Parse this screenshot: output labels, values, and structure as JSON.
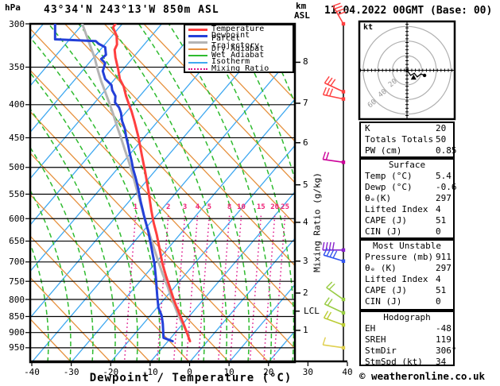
{
  "header": {
    "title": "43°34'N 243°13'W 850m ASL",
    "pressure_unit": "hPa",
    "alt_unit_line1": "km",
    "alt_unit_line2": "ASL",
    "datetime": "11.04.2022 00GMT (Base: 00)"
  },
  "axes": {
    "xlabel": "Dewpoint / Temperature (°C)",
    "mixing_axis_label": "Mixing Ratio (g/kg)",
    "lcl": {
      "label": "LCL",
      "p": 834
    }
  },
  "legend": [
    {
      "label": "Temperature",
      "color": "#ff3f3f",
      "style": "thick"
    },
    {
      "label": "Dewpoint",
      "color": "#2440d8",
      "style": "thick"
    },
    {
      "label": "Parcel Trajectory",
      "color": "#b4b4b4",
      "style": "thick"
    },
    {
      "label": "Dry Adiabat",
      "color": "#e6913e",
      "style": "thin"
    },
    {
      "label": "Wet Adiabat",
      "color": "#2fbb2f",
      "style": "thin"
    },
    {
      "label": "Isotherm",
      "color": "#3fa8f0",
      "style": "thin"
    },
    {
      "label": "Mixing Ratio",
      "color": "#dd1188",
      "style": "dotted"
    }
  ],
  "chart_data": {
    "type": "line",
    "subtype": "skew-t-log-p-sounding",
    "title": "43°34'N 243°13'W 850m ASL",
    "xlabel": "Dewpoint / Temperature (°C)",
    "x_ticks": [
      -40,
      -30,
      -20,
      -10,
      0,
      10,
      20,
      30,
      40
    ],
    "x_range": [
      -40,
      40
    ],
    "pressure_ticks_hpa": [
      300,
      350,
      400,
      450,
      500,
      550,
      600,
      650,
      700,
      750,
      800,
      850,
      900,
      950
    ],
    "pressure_range_hpa": [
      300,
      1000
    ],
    "pressure_axis": "log",
    "note": "points are [pressure hPa, position on skewed bottom temperature axis in °C]",
    "series": [
      {
        "name": "Temperature",
        "color": "#ff3f3f",
        "width": 3,
        "points": [
          [
            300,
            -18.8
          ],
          [
            304,
            -19.4
          ],
          [
            313,
            -18.5
          ],
          [
            323,
            -18.4
          ],
          [
            329,
            -19.0
          ],
          [
            338,
            -18.8
          ],
          [
            353,
            -18.1
          ],
          [
            365,
            -17.7
          ],
          [
            375,
            -16.7
          ],
          [
            388,
            -16.1
          ],
          [
            399,
            -15.4
          ],
          [
            410,
            -14.7
          ],
          [
            424,
            -14.0
          ],
          [
            448,
            -13.0
          ],
          [
            479,
            -12.1
          ],
          [
            510,
            -11.2
          ],
          [
            545,
            -10.4
          ],
          [
            583,
            -9.7
          ],
          [
            609,
            -9.1
          ],
          [
            636,
            -8.3
          ],
          [
            664,
            -7.7
          ],
          [
            704,
            -6.9
          ],
          [
            735,
            -6.0
          ],
          [
            767,
            -5.0
          ],
          [
            801,
            -4.0
          ],
          [
            824,
            -3.2
          ],
          [
            853,
            -2.2
          ],
          [
            877,
            -1.4
          ],
          [
            903,
            -0.6
          ],
          [
            928,
            0.1
          ]
        ]
      },
      {
        "name": "Dewpoint",
        "color": "#2440d8",
        "width": 3,
        "points": [
          [
            300,
            -34.1
          ],
          [
            317,
            -34.1
          ],
          [
            319,
            -23.8
          ],
          [
            322,
            -23.1
          ],
          [
            326,
            -21.4
          ],
          [
            335,
            -21.2
          ],
          [
            340,
            -22.4
          ],
          [
            345,
            -21.4
          ],
          [
            355,
            -22.0
          ],
          [
            365,
            -21.4
          ],
          [
            373,
            -19.8
          ],
          [
            380,
            -19.6
          ],
          [
            388,
            -18.8
          ],
          [
            397,
            -18.9
          ],
          [
            404,
            -17.9
          ],
          [
            412,
            -17.4
          ],
          [
            424,
            -17.1
          ],
          [
            436,
            -16.4
          ],
          [
            448,
            -16.1
          ],
          [
            461,
            -15.6
          ],
          [
            475,
            -15.2
          ],
          [
            489,
            -14.7
          ],
          [
            503,
            -14.3
          ],
          [
            518,
            -13.7
          ],
          [
            533,
            -13.2
          ],
          [
            549,
            -12.8
          ],
          [
            565,
            -12.4
          ],
          [
            581,
            -11.9
          ],
          [
            592,
            -11.6
          ],
          [
            627,
            -10.5
          ],
          [
            664,
            -9.7
          ],
          [
            704,
            -8.9
          ],
          [
            745,
            -8.5
          ],
          [
            790,
            -8.2
          ],
          [
            824,
            -7.9
          ],
          [
            847,
            -7.1
          ],
          [
            872,
            -6.8
          ],
          [
            896,
            -6.7
          ],
          [
            917,
            -6.6
          ],
          [
            928,
            -4.3
          ]
        ]
      },
      {
        "name": "Parcel Trajectory",
        "color": "#b4b4b4",
        "width": 3,
        "points": [
          [
            300,
            -27.2
          ],
          [
            317,
            -25.8
          ],
          [
            338,
            -24.1
          ],
          [
            355,
            -23.2
          ],
          [
            368,
            -22.4
          ],
          [
            382,
            -21.4
          ],
          [
            397,
            -20.4
          ],
          [
            413,
            -19.4
          ],
          [
            432,
            -18.4
          ],
          [
            450,
            -17.4
          ],
          [
            470,
            -16.4
          ],
          [
            490,
            -15.4
          ],
          [
            513,
            -14.4
          ],
          [
            538,
            -13.5
          ],
          [
            561,
            -12.7
          ],
          [
            581,
            -12.0
          ],
          [
            609,
            -11.1
          ],
          [
            636,
            -10.1
          ],
          [
            664,
            -9.1
          ],
          [
            694,
            -8.1
          ],
          [
            729,
            -6.9
          ],
          [
            763,
            -5.6
          ],
          [
            801,
            -4.4
          ],
          [
            836,
            -3.2
          ],
          [
            868,
            -2.0
          ],
          [
            890,
            -1.0
          ],
          [
            909,
            -0.2
          ]
        ]
      }
    ],
    "km_ticks": [
      {
        "km": 1,
        "p": 893
      },
      {
        "km": 2,
        "p": 782
      },
      {
        "km": 3,
        "p": 698
      },
      {
        "km": 4,
        "p": 608
      },
      {
        "km": 5,
        "p": 532
      },
      {
        "km": 6,
        "p": 458
      },
      {
        "km": 7,
        "p": 398
      },
      {
        "km": 8,
        "p": 344
      }
    ],
    "mixing_ratio_labels": {
      "values": [
        1,
        2,
        3,
        4,
        5,
        8,
        10,
        15,
        20,
        25
      ],
      "t_positions": [
        -13.7,
        -5.4,
        -1.2,
        2.0,
        5.0,
        10.1,
        13.1,
        18.1,
        21.6,
        24.2
      ],
      "label_row_p": 584
    },
    "background": {
      "isotherm_color": "#3fa8f0",
      "dry_adiabat_color": "#e6913e",
      "wet_adiabat_color": "#2fbb2f",
      "mixing_ratio_color": "#dd1188",
      "grid_color": "#000000",
      "isotherm_step_c": 10
    }
  },
  "wind_barbs": {
    "line_color": "#000000",
    "barbs": [
      {
        "p": 300,
        "color": "#ff4040",
        "angle": 240,
        "feathers": 4
      },
      {
        "p": 382,
        "color": "#ff4040",
        "angle": 205,
        "feathers": 3
      },
      {
        "p": 392,
        "color": "#ff4040",
        "angle": 192,
        "feathers": 3
      },
      {
        "p": 491,
        "color": "#cc0099",
        "angle": 188,
        "feathers": 2
      },
      {
        "p": 671,
        "color": "#8822cc",
        "angle": 180,
        "feathers": 4
      },
      {
        "p": 698,
        "color": "#3355ee",
        "angle": 197,
        "feathers": 4
      },
      {
        "p": 800,
        "color": "#99cc44",
        "angle": 215,
        "feathers": 2
      },
      {
        "p": 839,
        "color": "#99cc44",
        "angle": 205,
        "feathers": 2
      },
      {
        "p": 876,
        "color": "#bbcc33",
        "angle": 200,
        "feathers": 2
      },
      {
        "p": 950,
        "color": "#e0d050",
        "angle": 188,
        "feathers": 1
      }
    ]
  },
  "hodograph": {
    "unit": "kt",
    "rings_kt": [
      20,
      40,
      60
    ],
    "trace_kt": [
      [
        0,
        0
      ],
      [
        5,
        7
      ],
      [
        10,
        4
      ],
      [
        14,
        9
      ],
      [
        19,
        5
      ],
      [
        24,
        7
      ]
    ],
    "triangle_marker_kt": [
      9,
      10
    ],
    "dot_marker_kt": [
      24,
      7
    ]
  },
  "panel": {
    "tables": [
      {
        "header": null,
        "rows": [
          [
            "K",
            "20"
          ],
          [
            "Totals Totals",
            "50"
          ],
          [
            "PW (cm)",
            "0.85"
          ]
        ]
      },
      {
        "header": "Surface",
        "rows": [
          [
            "Temp (°C)",
            "5.4"
          ],
          [
            "Dewp (°C)",
            "-0.6"
          ],
          [
            "θₑ(K)",
            "297"
          ],
          [
            "Lifted Index",
            "4"
          ],
          [
            "CAPE (J)",
            "51"
          ],
          [
            "CIN (J)",
            "0"
          ]
        ]
      },
      {
        "header": "Most Unstable",
        "rows": [
          [
            "Pressure (mb)",
            "911"
          ],
          [
            "θₑ (K)",
            "297"
          ],
          [
            "Lifted Index",
            "4"
          ],
          [
            "CAPE (J)",
            "51"
          ],
          [
            "CIN (J)",
            "0"
          ]
        ]
      },
      {
        "header": "Hodograph",
        "rows": [
          [
            "EH",
            "-48"
          ],
          [
            "SREH",
            "119"
          ],
          [
            "StmDir",
            "306°"
          ],
          [
            "StmSpd (kt)",
            "34"
          ]
        ]
      }
    ]
  },
  "footer": {
    "copyright": "© weatheronline.co.uk"
  }
}
